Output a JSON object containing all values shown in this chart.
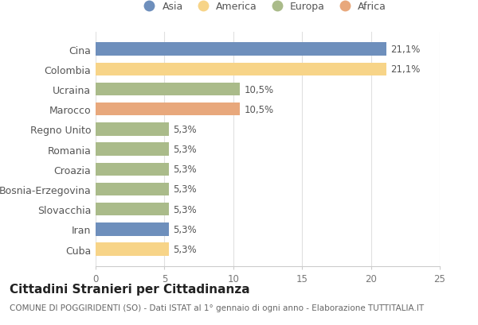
{
  "countries": [
    "Cina",
    "Colombia",
    "Ucraina",
    "Marocco",
    "Regno Unito",
    "Romania",
    "Croazia",
    "Bosnia-Erzegovina",
    "Slovacchia",
    "Iran",
    "Cuba"
  ],
  "values": [
    21.1,
    21.1,
    10.5,
    10.5,
    5.3,
    5.3,
    5.3,
    5.3,
    5.3,
    5.3,
    5.3
  ],
  "labels": [
    "21,1%",
    "21,1%",
    "10,5%",
    "10,5%",
    "5,3%",
    "5,3%",
    "5,3%",
    "5,3%",
    "5,3%",
    "5,3%",
    "5,3%"
  ],
  "colors": [
    "#6e8fbc",
    "#f7d488",
    "#aabb8a",
    "#e8a87c",
    "#aabb8a",
    "#aabb8a",
    "#aabb8a",
    "#aabb8a",
    "#aabb8a",
    "#6e8fbc",
    "#f7d488"
  ],
  "continents": [
    "Asia",
    "America",
    "Europa",
    "Africa"
  ],
  "legend_colors": [
    "#6e8fbc",
    "#f7d488",
    "#aabb8a",
    "#e8a87c"
  ],
  "xlim": [
    0,
    25
  ],
  "xticks": [
    0,
    5,
    10,
    15,
    20,
    25
  ],
  "title": "Cittadini Stranieri per Cittadinanza",
  "subtitle": "COMUNE DI POGGIRIDENTI (SO) - Dati ISTAT al 1° gennaio di ogni anno - Elaborazione TUTTITALIA.IT",
  "background_color": "#ffffff",
  "bar_height": 0.65,
  "label_fontsize": 8.5,
  "ytick_fontsize": 9,
  "xtick_fontsize": 8.5,
  "title_fontsize": 11,
  "subtitle_fontsize": 7.5,
  "legend_fontsize": 9
}
